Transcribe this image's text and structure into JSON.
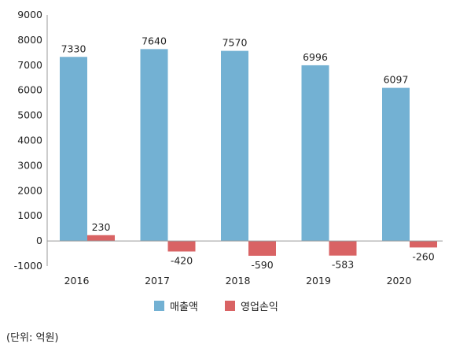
{
  "chart_data": {
    "type": "bar",
    "categories": [
      "2016",
      "2017",
      "2018",
      "2019",
      "2020"
    ],
    "series": [
      {
        "name": "매출액",
        "values": [
          7330,
          7640,
          7570,
          6996,
          6097
        ],
        "color": "#73b1d3"
      },
      {
        "name": "영업손익",
        "values": [
          230,
          -420,
          -590,
          -583,
          -260
        ],
        "color": "#d96364"
      }
    ],
    "data_labels": [
      [
        "7330",
        "7640",
        "7570",
        "6996",
        "6097"
      ],
      [
        "230",
        "-420",
        "-590",
        "-583",
        "-260"
      ]
    ],
    "y_ticks": [
      9000,
      8000,
      7000,
      6000,
      5000,
      4000,
      3000,
      2000,
      1000,
      0,
      -1000
    ],
    "ylim": [
      -1000,
      9000
    ],
    "grid": false,
    "legend_position": "bottom-center"
  },
  "unit_note": "(단위: 억원)"
}
